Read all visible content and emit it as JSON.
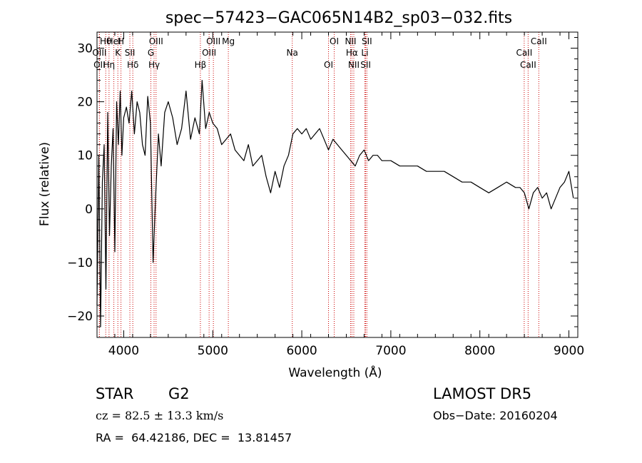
{
  "chart_data": {
    "type": "line",
    "title": "spec−57423−GAC065N14B2_sp03−032.fits",
    "xlabel": "Wavelength (Å)",
    "ylabel": "Flux (relative)",
    "xlim": [
      3700,
      9100
    ],
    "ylim": [
      -24,
      33
    ],
    "x_ticks": [
      4000,
      5000,
      6000,
      7000,
      8000,
      9000
    ],
    "y_ticks": [
      -20,
      -10,
      0,
      10,
      20,
      30
    ],
    "y_tick_labels": [
      "−20",
      "−10",
      "0",
      "10",
      "20",
      "30"
    ],
    "grid": false,
    "color": "#000000",
    "marker_color": "#cc0000",
    "series": [
      {
        "x": [
          3700,
          3720,
          3740,
          3760,
          3780,
          3800,
          3820,
          3840,
          3860,
          3880,
          3900,
          3920,
          3940,
          3960,
          3980,
          4000,
          4030,
          4060,
          4090,
          4120,
          4150,
          4180,
          4210,
          4240,
          4270,
          4300,
          4330,
          4360,
          4390,
          4420,
          4460,
          4500,
          4550,
          4600,
          4650,
          4700,
          4750,
          4800,
          4850,
          4880,
          4920,
          4960,
          5000,
          5050,
          5100,
          5150,
          5200,
          5250,
          5300,
          5350,
          5400,
          5450,
          5500,
          5550,
          5600,
          5650,
          5700,
          5750,
          5800,
          5850,
          5900,
          5950,
          6000,
          6050,
          6100,
          6150,
          6200,
          6250,
          6300,
          6350,
          6400,
          6450,
          6500,
          6550,
          6600,
          6650,
          6700,
          6750,
          6800,
          6850,
          6900,
          6950,
          7000,
          7100,
          7200,
          7300,
          7400,
          7500,
          7600,
          7700,
          7800,
          7900,
          8000,
          8100,
          8200,
          8300,
          8400,
          8450,
          8500,
          8550,
          8600,
          8650,
          8700,
          8750,
          8800,
          8850,
          8900,
          8950,
          9000,
          9050
        ],
        "y": [
          -18,
          10,
          -22,
          5,
          12,
          -15,
          18,
          -5,
          8,
          15,
          -8,
          20,
          12,
          22,
          10,
          17,
          19,
          16,
          22,
          14,
          20,
          18,
          12,
          10,
          21,
          16,
          -10,
          3,
          14,
          8,
          18,
          20,
          17,
          12,
          15,
          22,
          13,
          17,
          14,
          24,
          15,
          18,
          16,
          15,
          12,
          13,
          14,
          11,
          10,
          9,
          12,
          8,
          9,
          10,
          6,
          3,
          7,
          4,
          8,
          10,
          14,
          15,
          14,
          15,
          13,
          14,
          15,
          13,
          11,
          13,
          12,
          11,
          10,
          9,
          8,
          10,
          11,
          9,
          10,
          10,
          9,
          9,
          9,
          8,
          8,
          8,
          7,
          7,
          7,
          6,
          5,
          5,
          4,
          3,
          4,
          5,
          4,
          4,
          3,
          0,
          3,
          4,
          2,
          3,
          0,
          2,
          4,
          5,
          7,
          2
        ]
      }
    ],
    "lines": [
      {
        "label": "Hθ",
        "x": 3798
      },
      {
        "label": "K",
        "x": 3934
      },
      {
        "label": "Hδ",
        "x": 4102
      },
      {
        "label": "OIII",
        "x": 4363
      },
      {
        "label": "OIII",
        "x": 4959
      },
      {
        "label": "OII",
        "x": 3727
      },
      {
        "label": "HeI",
        "x": 3889
      },
      {
        "label": "SII",
        "x": 4069
      },
      {
        "label": "Hγ",
        "x": 4341
      },
      {
        "label": "OIII",
        "x": 5007
      },
      {
        "label": "OIII",
        "x": 3727
      },
      {
        "label": "Hη",
        "x": 3835
      },
      {
        "label": "H",
        "x": 3969
      },
      {
        "label": "G",
        "x": 4305
      },
      {
        "label": "Hβ",
        "x": 4861
      },
      {
        "label": "Mg",
        "x": 5175
      },
      {
        "label": "Na",
        "x": 5893
      },
      {
        "label": "OI",
        "x": 6300
      },
      {
        "label": "OI",
        "x": 6364
      },
      {
        "label": "Hα",
        "x": 6563
      },
      {
        "label": "SII",
        "x": 6717
      },
      {
        "label": "NII",
        "x": 6548
      },
      {
        "label": "Li",
        "x": 6708
      },
      {
        "label": "NII",
        "x": 6584
      },
      {
        "label": "SII",
        "x": 6731
      },
      {
        "label": "CaII",
        "x": 8498
      },
      {
        "label": "CaII",
        "x": 8542
      },
      {
        "label": "CaII",
        "x": 8662
      }
    ]
  },
  "info": {
    "class": "STAR",
    "subclass": "G2",
    "survey": "LAMOST DR5",
    "cz": "cz = 82.5 ± 13.3 km/s",
    "obs_date": "Obs−Date: 20160204",
    "coords": "RA =  64.42186, DEC =  13.81457"
  }
}
